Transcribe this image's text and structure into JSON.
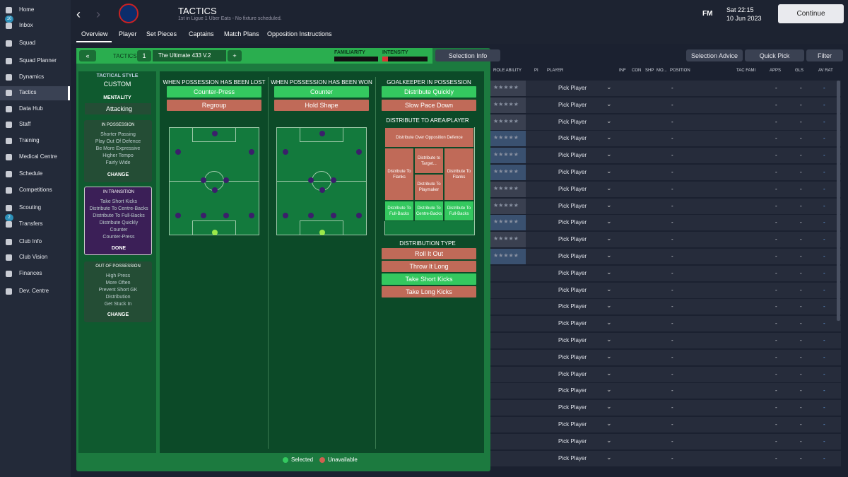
{
  "sidebar": [
    {
      "label": "Home"
    },
    {
      "label": "Inbox",
      "badge": "10"
    },
    {
      "label": "Squad"
    },
    {
      "label": "Squad Planner"
    },
    {
      "label": "Dynamics"
    },
    {
      "label": "Tactics"
    },
    {
      "label": "Data Hub"
    },
    {
      "label": "Staff"
    },
    {
      "label": "Training"
    },
    {
      "label": "Medical Centre"
    },
    {
      "label": "Schedule"
    },
    {
      "label": "Competitions"
    },
    {
      "label": "Scouting"
    },
    {
      "label": "Transfers",
      "badge": "2"
    },
    {
      "label": "Club Info"
    },
    {
      "label": "Club Vision"
    },
    {
      "label": "Finances"
    },
    {
      "label": "Dev. Centre"
    }
  ],
  "header": {
    "title": "TACTICS",
    "subtitle": "1st in Ligue 1 Uber Eats - No fixture scheduled.",
    "brand": "FM",
    "day_time": "Sat 22:15",
    "date": "10 Jun 2023",
    "continue": "Continue"
  },
  "tabs": [
    "Overview",
    "Player",
    "Set Pieces",
    "Captains",
    "Match Plans",
    "Opposition Instructions"
  ],
  "toolbar": {
    "tactics": "TACTICS",
    "slot": "1",
    "tactic_name": "The Ultimate 433 V.2",
    "familiarity": "FAMILIARITY",
    "intensity": "INTENSITY",
    "selection_info": "Selection Info",
    "selection_advice": "Selection Advice",
    "quick_pick": "Quick Pick",
    "filter": "Filter"
  },
  "style_panel": {
    "heading": "TACTICAL STYLE",
    "style": "CUSTOM",
    "mentality_label": "MENTALITY",
    "mentality": "Attacking",
    "phases": [
      {
        "title": "IN POSSESSION",
        "items": [
          "Shorter Passing",
          "Play Out Of Defence",
          "Be More Expressive",
          "Higher Tempo",
          "Fairly Wide"
        ],
        "button": "CHANGE"
      },
      {
        "title": "IN TRANSITION",
        "items": [
          "Take Short Kicks",
          "Distribute To Centre-Backs",
          "Distribute To Full-Backs",
          "Distribute Quickly",
          "Counter",
          "Counter-Press"
        ],
        "button": "DONE"
      },
      {
        "title": "OUT OF POSSESSION",
        "items": [
          "High Press",
          "More Often",
          "Prevent Short GK",
          "Distribution",
          "Get Stuck In"
        ],
        "button": "CHANGE"
      }
    ]
  },
  "columns": [
    {
      "title": "WHEN POSSESSION HAS BEEN LOST",
      "options": [
        {
          "label": "Counter-Press",
          "state": "selected"
        },
        {
          "label": "Regroup",
          "state": "unavailable"
        }
      ]
    },
    {
      "title": "WHEN POSSESSION HAS BEEN WON",
      "options": [
        {
          "label": "Counter",
          "state": "selected"
        },
        {
          "label": "Hold Shape",
          "state": "unavailable"
        }
      ]
    },
    {
      "title": "GOALKEEPER IN POSSESSION",
      "options": [
        {
          "label": "Distribute Quickly",
          "state": "selected"
        },
        {
          "label": "Slow Pace Down",
          "state": "unavailable"
        }
      ]
    }
  ],
  "distribution": {
    "title": "DISTRIBUTE TO AREA/PLAYER",
    "cells": [
      {
        "label": "Distribute Over Opposition Defence",
        "state": "unavailable"
      },
      {
        "label": "Distribute To Flanks",
        "state": "unavailable"
      },
      {
        "label": "Distribute to Target...",
        "state": "unavailable"
      },
      {
        "label": "Distribute To Playmaker",
        "state": "unavailable"
      },
      {
        "label": "Distribute To Flanks",
        "state": "unavailable"
      },
      {
        "label": "Distribute To Full-Backs",
        "state": "selected"
      },
      {
        "label": "Distribute To Centre-Backs",
        "state": "selected"
      },
      {
        "label": "Distribute To Full-Backs",
        "state": "selected"
      }
    ],
    "type_title": "DISTRIBUTION TYPE",
    "types": [
      {
        "label": "Roll It Out",
        "state": "unavailable"
      },
      {
        "label": "Throw It Long",
        "state": "unavailable"
      },
      {
        "label": "Take Short Kicks",
        "state": "selected"
      },
      {
        "label": "Take Long Kicks",
        "state": "unavailable"
      }
    ]
  },
  "legend": [
    {
      "label": "Selected",
      "state": "selected"
    },
    {
      "label": "Unavailable",
      "state": "unavailable"
    }
  ],
  "table": {
    "columns": [
      "ROLE ABILITY",
      "PI",
      "PLAYER",
      "INF",
      "CON",
      "SHP",
      "MO...",
      "POSITION",
      "TAC FAMI",
      "APPS",
      "GLS",
      "AV RAT"
    ],
    "rows": [
      [
        "Pick Player",
        "-",
        "-",
        "-",
        "-"
      ],
      [
        "Pick Player",
        "-",
        "-",
        "-",
        "-"
      ],
      [
        "Pick Player",
        "-",
        "-",
        "-",
        "-"
      ],
      [
        "Pick Player",
        "-",
        "-",
        "-",
        "-"
      ],
      [
        "Pick Player",
        "-",
        "-",
        "-",
        "-"
      ],
      [
        "Pick Player",
        "-",
        "-",
        "-",
        "-"
      ],
      [
        "Pick Player",
        "-",
        "-",
        "-",
        "-"
      ],
      [
        "Pick Player",
        "-",
        "-",
        "-",
        "-"
      ],
      [
        "Pick Player",
        "-",
        "-",
        "-",
        "-"
      ],
      [
        "Pick Player",
        "-",
        "-",
        "-",
        "-"
      ],
      [
        "Pick Player",
        "-",
        "-",
        "-",
        "-"
      ],
      [
        "Pick Player",
        "-",
        "-",
        "-",
        "-"
      ],
      [
        "Pick Player",
        "-",
        "-",
        "-",
        "-"
      ],
      [
        "Pick Player",
        "-",
        "-",
        "-",
        "-"
      ],
      [
        "Pick Player",
        "-",
        "-",
        "-",
        "-"
      ],
      [
        "Pick Player",
        "-",
        "-",
        "-",
        "-"
      ],
      [
        "Pick Player",
        "-",
        "-",
        "-",
        "-"
      ],
      [
        "Pick Player",
        "-",
        "-",
        "-",
        "-"
      ],
      [
        "Pick Player",
        "-",
        "-",
        "-",
        "-"
      ],
      [
        "Pick Player",
        "-",
        "-",
        "-",
        "-"
      ],
      [
        "Pick Player",
        "-",
        "-",
        "-",
        "-"
      ],
      [
        "Pick Player",
        "-",
        "-",
        "-",
        "-"
      ],
      [
        "Pick Player",
        "-",
        "-",
        "-",
        "-"
      ]
    ]
  }
}
